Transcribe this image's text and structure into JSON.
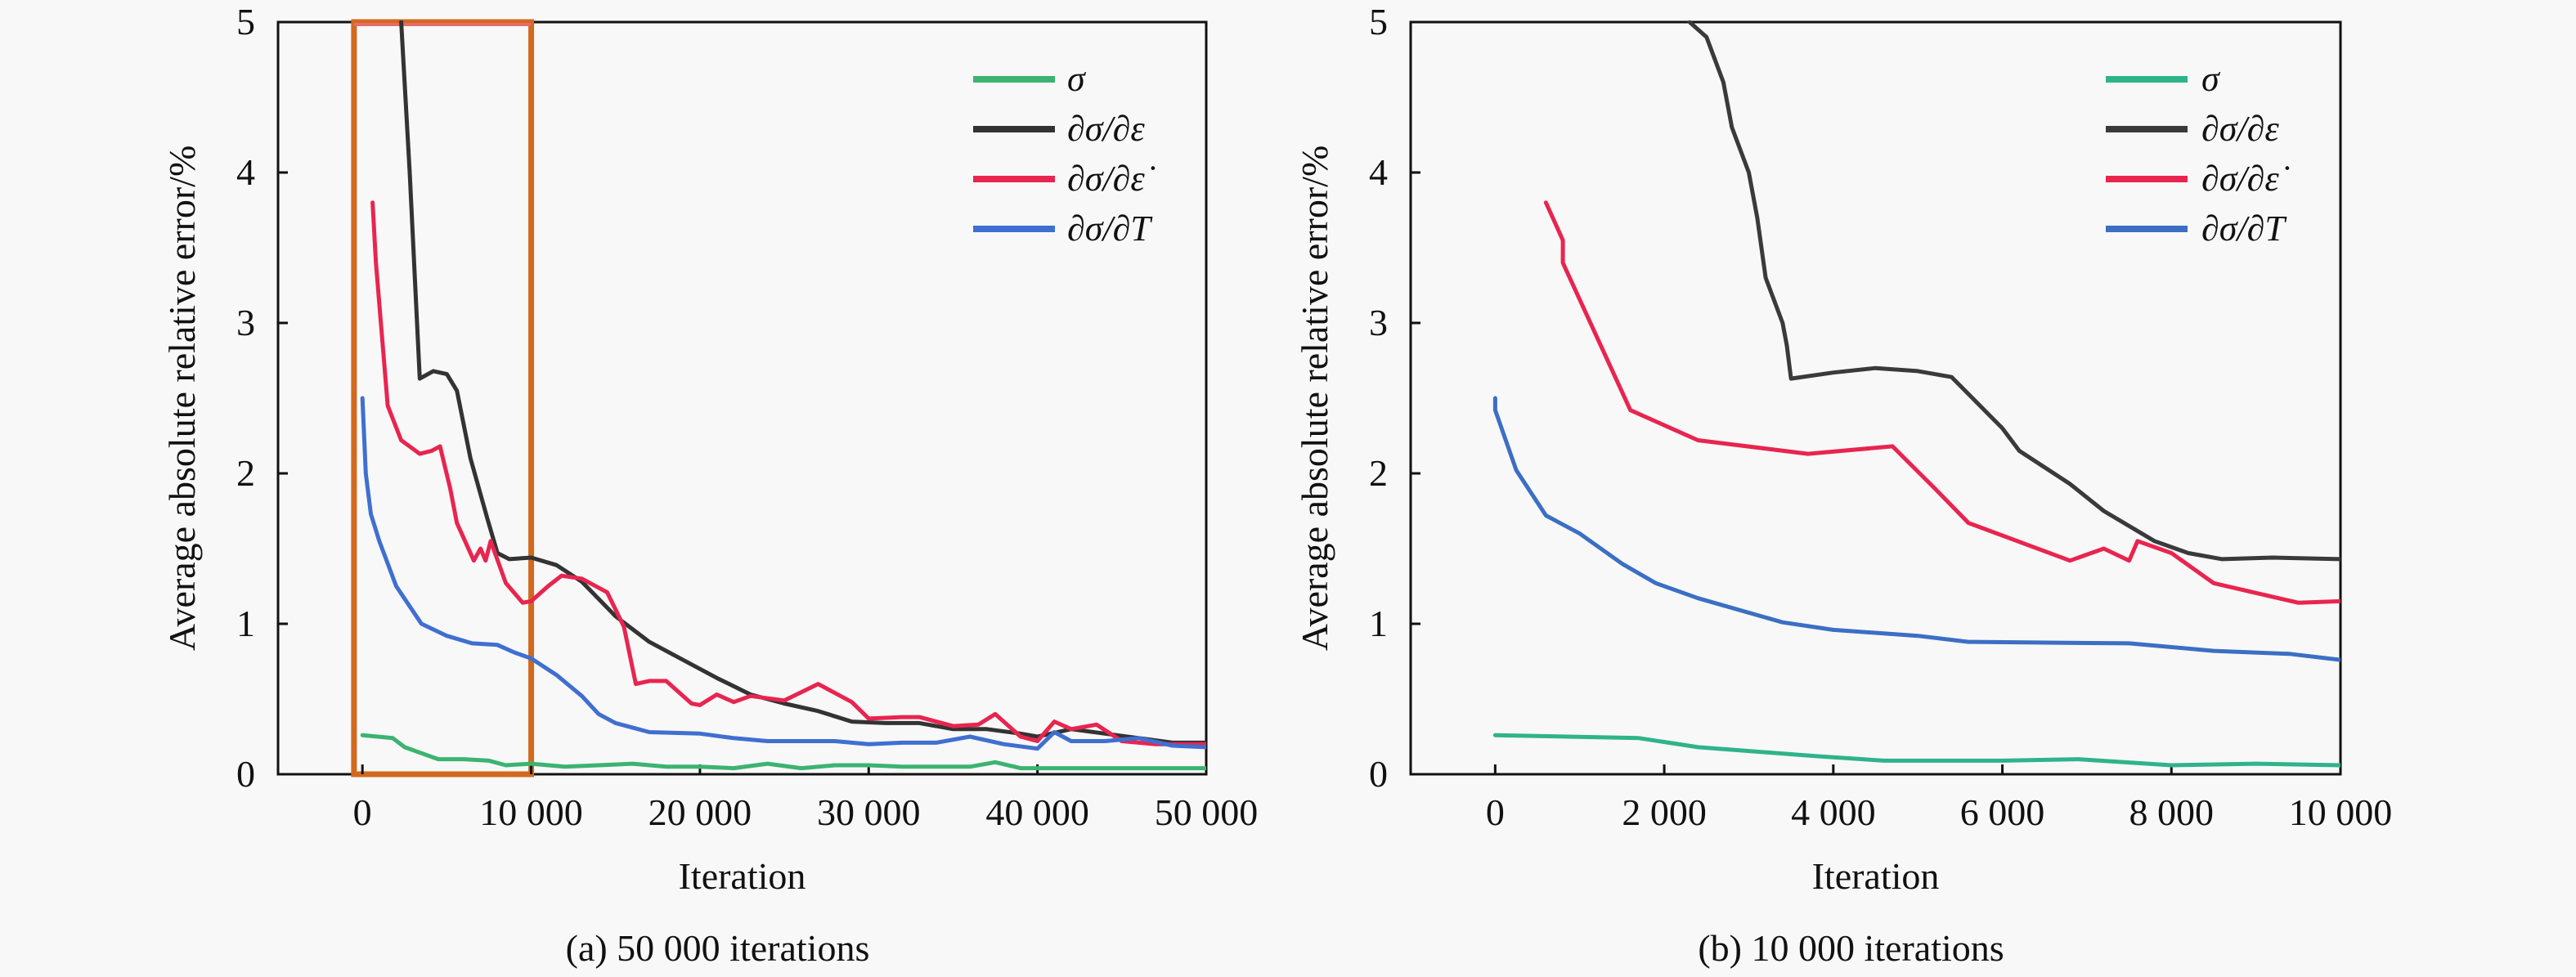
{
  "chart_data": [
    {
      "type": "line",
      "caption": "(a) 50 000 iterations",
      "xlabel": "Iteration",
      "ylabel": "Average absolute relative error/%",
      "xlim": [
        -5000,
        50000
      ],
      "ylim": [
        0,
        5
      ],
      "xticks": [
        0,
        10000,
        20000,
        30000,
        40000,
        50000
      ],
      "xtick_labels": [
        "0",
        "10 000",
        "20 000",
        "30 000",
        "40 000",
        "50 000"
      ],
      "yticks": [
        0,
        1,
        2,
        3,
        4,
        5
      ],
      "ytick_labels": [
        "0",
        "1",
        "2",
        "3",
        "4",
        "5"
      ],
      "grid": false,
      "legend_position": "top-right",
      "highlight_box": {
        "x_range": [
          -500,
          10000
        ],
        "y_range": [
          0,
          5
        ],
        "color": "#d2691e"
      },
      "series": [
        {
          "name": "σ",
          "color": "#3cb371",
          "points": [
            [
              0,
              0.26
            ],
            [
              1800,
              0.24
            ],
            [
              2500,
              0.18
            ],
            [
              4500,
              0.1
            ],
            [
              6000,
              0.1
            ],
            [
              7500,
              0.09
            ],
            [
              8500,
              0.06
            ],
            [
              10000,
              0.07
            ],
            [
              12000,
              0.05
            ],
            [
              14000,
              0.06
            ],
            [
              16000,
              0.07
            ],
            [
              18000,
              0.05
            ],
            [
              20000,
              0.05
            ],
            [
              22000,
              0.04
            ],
            [
              24000,
              0.07
            ],
            [
              26000,
              0.04
            ],
            [
              28000,
              0.06
            ],
            [
              30000,
              0.06
            ],
            [
              32000,
              0.05
            ],
            [
              34000,
              0.05
            ],
            [
              36000,
              0.05
            ],
            [
              37500,
              0.08
            ],
            [
              39000,
              0.04
            ],
            [
              42000,
              0.04
            ],
            [
              46000,
              0.04
            ],
            [
              50000,
              0.04
            ]
          ]
        },
        {
          "name": "∂σ/∂ε",
          "color": "#333333",
          "points": [
            [
              2300,
              5.0
            ],
            [
              2800,
              4.0
            ],
            [
              3400,
              2.63
            ],
            [
              4200,
              2.68
            ],
            [
              5000,
              2.66
            ],
            [
              5600,
              2.55
            ],
            [
              6400,
              2.1
            ],
            [
              7400,
              1.7
            ],
            [
              8000,
              1.47
            ],
            [
              8700,
              1.43
            ],
            [
              10000,
              1.44
            ],
            [
              11500,
              1.39
            ],
            [
              13000,
              1.28
            ],
            [
              15000,
              1.05
            ],
            [
              17000,
              0.88
            ],
            [
              19000,
              0.76
            ],
            [
              21000,
              0.64
            ],
            [
              23000,
              0.53
            ],
            [
              25000,
              0.47
            ],
            [
              27000,
              0.42
            ],
            [
              29000,
              0.35
            ],
            [
              31000,
              0.34
            ],
            [
              33000,
              0.34
            ],
            [
              35000,
              0.3
            ],
            [
              37000,
              0.3
            ],
            [
              39000,
              0.27
            ],
            [
              40000,
              0.25
            ],
            [
              42000,
              0.3
            ],
            [
              44000,
              0.27
            ],
            [
              46000,
              0.24
            ],
            [
              48000,
              0.21
            ],
            [
              50000,
              0.21
            ]
          ]
        },
        {
          "name": "∂σ/∂ε̇",
          "color": "#e8254f",
          "points": [
            [
              600,
              3.8
            ],
            [
              800,
              3.4
            ],
            [
              1500,
              2.45
            ],
            [
              2300,
              2.22
            ],
            [
              3400,
              2.13
            ],
            [
              4100,
              2.15
            ],
            [
              4600,
              2.18
            ],
            [
              5200,
              1.9
            ],
            [
              5600,
              1.67
            ],
            [
              6600,
              1.42
            ],
            [
              7000,
              1.5
            ],
            [
              7300,
              1.42
            ],
            [
              7600,
              1.55
            ],
            [
              8500,
              1.27
            ],
            [
              9500,
              1.14
            ],
            [
              10000,
              1.15
            ],
            [
              11000,
              1.25
            ],
            [
              11800,
              1.32
            ],
            [
              13000,
              1.3
            ],
            [
              14500,
              1.21
            ],
            [
              15500,
              0.98
            ],
            [
              16200,
              0.6
            ],
            [
              17000,
              0.62
            ],
            [
              18000,
              0.62
            ],
            [
              19500,
              0.47
            ],
            [
              20000,
              0.46
            ],
            [
              21000,
              0.53
            ],
            [
              22000,
              0.48
            ],
            [
              23000,
              0.52
            ],
            [
              25000,
              0.49
            ],
            [
              27000,
              0.6
            ],
            [
              29000,
              0.48
            ],
            [
              30000,
              0.37
            ],
            [
              32000,
              0.38
            ],
            [
              33000,
              0.38
            ],
            [
              35000,
              0.32
            ],
            [
              36500,
              0.33
            ],
            [
              37500,
              0.4
            ],
            [
              39000,
              0.25
            ],
            [
              40000,
              0.22
            ],
            [
              41000,
              0.35
            ],
            [
              42000,
              0.3
            ],
            [
              43500,
              0.33
            ],
            [
              45000,
              0.22
            ],
            [
              47000,
              0.2
            ],
            [
              50000,
              0.2
            ]
          ]
        },
        {
          "name": "∂σ/∂T",
          "color": "#3f6fd0",
          "points": [
            [
              0,
              2.5
            ],
            [
              200,
              2.0
            ],
            [
              500,
              1.73
            ],
            [
              1000,
              1.55
            ],
            [
              2000,
              1.25
            ],
            [
              3500,
              1.0
            ],
            [
              5000,
              0.92
            ],
            [
              6500,
              0.87
            ],
            [
              8000,
              0.86
            ],
            [
              9000,
              0.81
            ],
            [
              10000,
              0.77
            ],
            [
              11500,
              0.66
            ],
            [
              13000,
              0.52
            ],
            [
              14000,
              0.4
            ],
            [
              15000,
              0.34
            ],
            [
              17000,
              0.28
            ],
            [
              20000,
              0.27
            ],
            [
              22000,
              0.24
            ],
            [
              24000,
              0.22
            ],
            [
              26000,
              0.22
            ],
            [
              28000,
              0.22
            ],
            [
              30000,
              0.2
            ],
            [
              32000,
              0.21
            ],
            [
              34000,
              0.21
            ],
            [
              36000,
              0.25
            ],
            [
              38000,
              0.2
            ],
            [
              40000,
              0.17
            ],
            [
              41000,
              0.28
            ],
            [
              42000,
              0.22
            ],
            [
              44000,
              0.22
            ],
            [
              46000,
              0.24
            ],
            [
              48000,
              0.19
            ],
            [
              50000,
              0.18
            ]
          ]
        }
      ]
    },
    {
      "type": "line",
      "caption": "(b) 10 000 iterations",
      "xlabel": "Iteration",
      "ylabel": "Average absolute relative error/%",
      "xlim": [
        -1000,
        10000
      ],
      "ylim": [
        0,
        5
      ],
      "xticks": [
        0,
        2000,
        4000,
        6000,
        8000,
        10000
      ],
      "xtick_labels": [
        "0",
        "2 000",
        "4 000",
        "6 000",
        "8 000",
        "10 000"
      ],
      "yticks": [
        0,
        1,
        2,
        3,
        4,
        5
      ],
      "ytick_labels": [
        "0",
        "1",
        "2",
        "3",
        "4",
        "5"
      ],
      "grid": false,
      "legend_position": "top-right",
      "series": [
        {
          "name": "σ",
          "color": "#2fb38a",
          "points": [
            [
              0,
              0.26
            ],
            [
              1700,
              0.24
            ],
            [
              2400,
              0.18
            ],
            [
              3800,
              0.12
            ],
            [
              4600,
              0.09
            ],
            [
              6000,
              0.09
            ],
            [
              6900,
              0.1
            ],
            [
              8000,
              0.06
            ],
            [
              9000,
              0.07
            ],
            [
              10000,
              0.06
            ]
          ]
        },
        {
          "name": "∂σ/∂ε",
          "color": "#3a3a3a",
          "points": [
            [
              2300,
              5.0
            ],
            [
              2500,
              4.9
            ],
            [
              2700,
              4.6
            ],
            [
              2800,
              4.3
            ],
            [
              3000,
              4.0
            ],
            [
              3100,
              3.7
            ],
            [
              3200,
              3.3
            ],
            [
              3400,
              3.0
            ],
            [
              3450,
              2.85
            ],
            [
              3500,
              2.63
            ],
            [
              4000,
              2.67
            ],
            [
              4500,
              2.7
            ],
            [
              5000,
              2.68
            ],
            [
              5400,
              2.64
            ],
            [
              6000,
              2.3
            ],
            [
              6200,
              2.15
            ],
            [
              6800,
              1.93
            ],
            [
              7200,
              1.75
            ],
            [
              7800,
              1.55
            ],
            [
              8200,
              1.47
            ],
            [
              8600,
              1.43
            ],
            [
              9200,
              1.44
            ],
            [
              10000,
              1.43
            ]
          ]
        },
        {
          "name": "∂σ/∂ε̇",
          "color": "#e8254f",
          "points": [
            [
              600,
              3.8
            ],
            [
              800,
              3.55
            ],
            [
              800,
              3.4
            ],
            [
              1600,
              2.42
            ],
            [
              2400,
              2.22
            ],
            [
              3700,
              2.13
            ],
            [
              4700,
              2.18
            ],
            [
              5200,
              1.9
            ],
            [
              5600,
              1.67
            ],
            [
              6800,
              1.42
            ],
            [
              7200,
              1.5
            ],
            [
              7500,
              1.42
            ],
            [
              7600,
              1.55
            ],
            [
              8000,
              1.47
            ],
            [
              8500,
              1.27
            ],
            [
              9500,
              1.14
            ],
            [
              10000,
              1.15
            ]
          ]
        },
        {
          "name": "∂σ/∂T",
          "color": "#3b6fc4",
          "points": [
            [
              0,
              2.5
            ],
            [
              0,
              2.42
            ],
            [
              250,
              2.02
            ],
            [
              600,
              1.72
            ],
            [
              1000,
              1.6
            ],
            [
              1500,
              1.4
            ],
            [
              1900,
              1.27
            ],
            [
              2400,
              1.17
            ],
            [
              3400,
              1.01
            ],
            [
              4000,
              0.96
            ],
            [
              5000,
              0.92
            ],
            [
              5600,
              0.88
            ],
            [
              7500,
              0.87
            ],
            [
              8500,
              0.82
            ],
            [
              9400,
              0.8
            ],
            [
              10000,
              0.76
            ]
          ]
        }
      ]
    }
  ]
}
